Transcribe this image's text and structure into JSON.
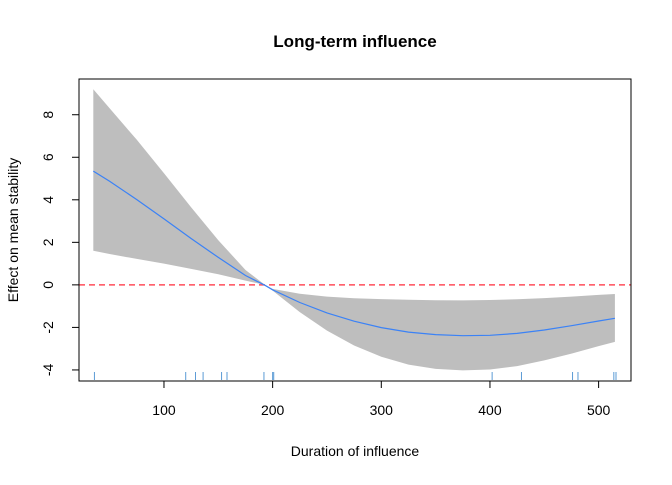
{
  "chart_data": {
    "type": "line",
    "title": "Long-term influence",
    "xlabel": "Duration of influence",
    "ylabel": "Effect on mean stability",
    "xlim": [
      21.8,
      529.8
    ],
    "ylim": [
      -4.52,
      9.68
    ],
    "x_ticks": [
      100,
      200,
      300,
      400,
      500
    ],
    "y_ticks": [
      -4,
      -2,
      0,
      2,
      4,
      6,
      8
    ],
    "grid": false,
    "legend": "none",
    "colors": {
      "line": "#3b82f6",
      "band": "#bebebe",
      "reference": "#ff4d5a",
      "rug": "#5b9bd5"
    },
    "reference_line": {
      "y": 0,
      "style": "dashed"
    },
    "series": [
      {
        "x": [
          35,
          50,
          75,
          100,
          125,
          150,
          175,
          193,
          200,
          225,
          250,
          275,
          300,
          325,
          350,
          375,
          400,
          425,
          450,
          475,
          500,
          515
        ],
        "y": [
          5.35,
          4.87,
          4.01,
          3.1,
          2.18,
          1.29,
          0.44,
          -0.02,
          -0.23,
          -0.83,
          -1.32,
          -1.71,
          -2.01,
          -2.22,
          -2.34,
          -2.39,
          -2.37,
          -2.28,
          -2.12,
          -1.92,
          -1.7,
          -1.57
        ],
        "lower": [
          1.6,
          1.45,
          1.22,
          1.0,
          0.75,
          0.5,
          0.2,
          0.0,
          -0.27,
          -1.28,
          -2.15,
          -2.85,
          -3.38,
          -3.75,
          -3.95,
          -4.02,
          -3.98,
          -3.82,
          -3.55,
          -3.23,
          -2.88,
          -2.68
        ],
        "upper": [
          9.2,
          8.3,
          6.82,
          5.25,
          3.65,
          2.1,
          0.7,
          0.0,
          -0.19,
          -0.42,
          -0.55,
          -0.63,
          -0.67,
          -0.7,
          -0.72,
          -0.73,
          -0.71,
          -0.68,
          -0.62,
          -0.55,
          -0.47,
          -0.43
        ]
      }
    ],
    "rug_x": [
      36,
      120,
      129,
      136,
      153,
      158,
      192,
      200,
      201,
      402,
      429,
      476,
      481,
      514,
      516
    ]
  }
}
